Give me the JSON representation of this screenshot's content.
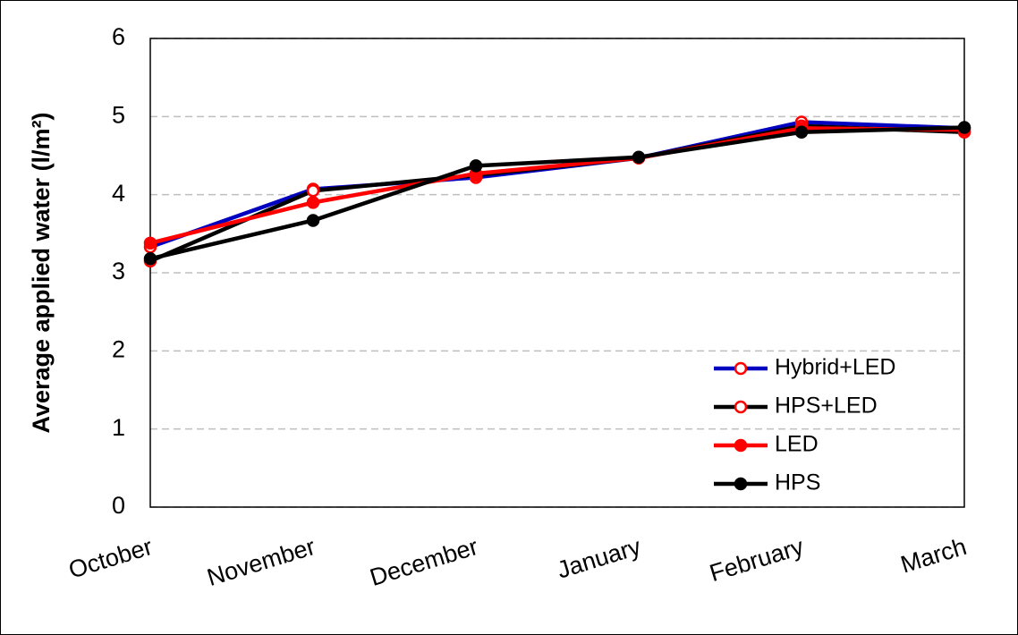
{
  "chart_data": {
    "type": "line",
    "y_label": "Average applied water (l/m²)",
    "categories": [
      "October",
      "November",
      "December",
      "January",
      "February",
      "March"
    ],
    "ylim": [
      0,
      6
    ],
    "yticks": [
      0,
      1,
      2,
      3,
      4,
      5,
      6
    ],
    "grid": true,
    "legend": "lower right",
    "series": [
      {
        "name": "Hybrid+LED",
        "color": "#0000c0",
        "marker": "open",
        "marker_color": "#ff0000",
        "values": [
          3.33,
          4.07,
          4.22,
          4.47,
          4.93,
          4.85
        ]
      },
      {
        "name": "HPS+LED",
        "color": "#000000",
        "marker": "open",
        "marker_color": "#ff0000",
        "values": [
          3.15,
          4.05,
          4.25,
          4.47,
          4.88,
          4.8
        ]
      },
      {
        "name": "LED",
        "color": "#ff0000",
        "marker": "filled",
        "marker_color": "#ff0000",
        "values": [
          3.38,
          3.9,
          4.27,
          4.47,
          4.85,
          4.83
        ]
      },
      {
        "name": "HPS",
        "color": "#000000",
        "marker": "filled",
        "marker_color": "#000000",
        "values": [
          3.18,
          3.67,
          4.37,
          4.48,
          4.8,
          4.86
        ]
      }
    ]
  }
}
